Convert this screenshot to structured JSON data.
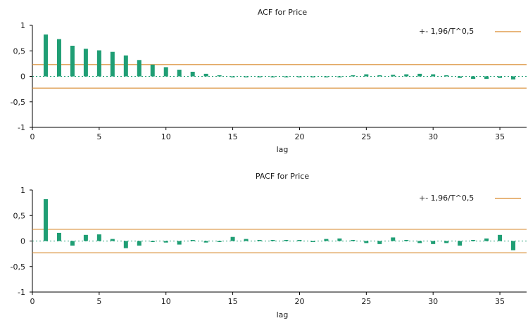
{
  "chart_data": [
    {
      "type": "bar",
      "title": "ACF for Price",
      "xlabel": "lag",
      "ylabel": "",
      "xlim": [
        0,
        37
      ],
      "ylim": [
        -1,
        1
      ],
      "xticks": [
        "0",
        "5",
        "10",
        "15",
        "20",
        "25",
        "30",
        "35"
      ],
      "yticks": [
        "1",
        "0,5",
        "0",
        "-0,5",
        "-1"
      ],
      "legend_label": "+- 1,96/T^0,5",
      "legend_position": "top-right",
      "band": 0.23,
      "colors": {
        "bars": "#1f9e74",
        "band": "#d98a2f"
      },
      "x": [
        1,
        2,
        3,
        4,
        5,
        6,
        7,
        8,
        9,
        10,
        11,
        12,
        13,
        14,
        15,
        16,
        17,
        18,
        19,
        20,
        21,
        22,
        23,
        24,
        25,
        26,
        27,
        28,
        29,
        30,
        31,
        32,
        33,
        34,
        35,
        36
      ],
      "values": [
        0.82,
        0.73,
        0.6,
        0.54,
        0.51,
        0.48,
        0.41,
        0.32,
        0.23,
        0.18,
        0.13,
        0.09,
        0.05,
        0.01,
        -0.01,
        -0.02,
        -0.01,
        -0.02,
        -0.02,
        -0.02,
        -0.02,
        -0.02,
        -0.01,
        0.02,
        0.04,
        0.01,
        0.03,
        0.04,
        0.05,
        0.04,
        0.01,
        -0.03,
        -0.05,
        -0.05,
        -0.03,
        -0.06
      ]
    },
    {
      "type": "bar",
      "title": "PACF for Price",
      "xlabel": "lag",
      "ylabel": "",
      "xlim": [
        0,
        37
      ],
      "ylim": [
        -1,
        1
      ],
      "xticks": [
        "0",
        "5",
        "10",
        "15",
        "20",
        "25",
        "30",
        "35"
      ],
      "yticks": [
        "1",
        "0,5",
        "0",
        "-0,5",
        "-1"
      ],
      "legend_label": "+- 1,96/T^0,5",
      "legend_position": "top-right",
      "band": 0.23,
      "colors": {
        "bars": "#1f9e74",
        "band": "#d98a2f"
      },
      "x": [
        1,
        2,
        3,
        4,
        5,
        6,
        7,
        8,
        9,
        10,
        11,
        12,
        13,
        14,
        15,
        16,
        17,
        18,
        19,
        20,
        21,
        22,
        23,
        24,
        25,
        26,
        27,
        28,
        29,
        30,
        31,
        32,
        33,
        34,
        35,
        36
      ],
      "values": [
        0.82,
        0.16,
        -0.09,
        0.12,
        0.13,
        0.04,
        -0.14,
        -0.09,
        -0.02,
        -0.03,
        -0.07,
        0.0,
        -0.03,
        -0.01,
        0.08,
        0.04,
        0.0,
        0.0,
        0.02,
        0.01,
        -0.01,
        0.04,
        0.05,
        0.0,
        -0.04,
        -0.06,
        0.07,
        0.02,
        -0.04,
        -0.06,
        -0.04,
        -0.09,
        0.0,
        0.05,
        0.12,
        -0.18
      ]
    }
  ]
}
